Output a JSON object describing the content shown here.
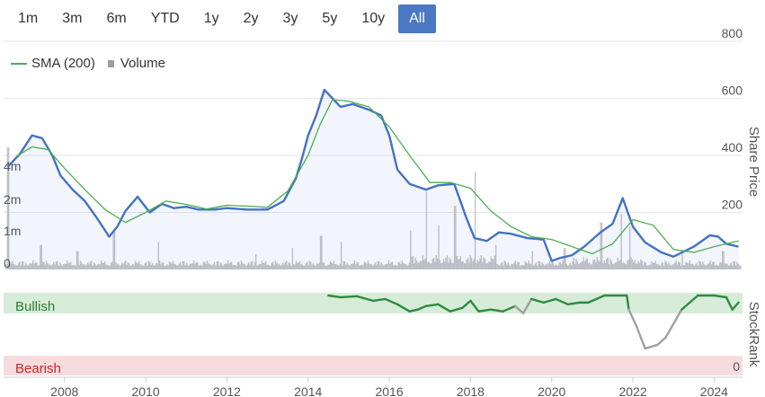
{
  "range_buttons": [
    {
      "label": "1m",
      "active": false
    },
    {
      "label": "3m",
      "active": false
    },
    {
      "label": "6m",
      "active": false
    },
    {
      "label": "YTD",
      "active": false
    },
    {
      "label": "1y",
      "active": false
    },
    {
      "label": "2y",
      "active": false
    },
    {
      "label": "3y",
      "active": false
    },
    {
      "label": "5y",
      "active": false
    },
    {
      "label": "10y",
      "active": false
    },
    {
      "label": "All",
      "active": true
    }
  ],
  "legend": {
    "sma_label": "SMA (200)",
    "volume_label": "Volume"
  },
  "colors": {
    "price": "#4472c4",
    "sma": "#4caf50",
    "volume": "#c4c4c4",
    "bullish_band": "#d6ecd9",
    "bearish_band": "#f7dcdf",
    "rank_bullish": "#2e8b3e",
    "rank_neutral": "#a0a0a0"
  },
  "chart_data": {
    "type": "line",
    "x_ticks": [
      "2008",
      "2010",
      "2012",
      "2014",
      "2016",
      "2018",
      "2020",
      "2022",
      "2024"
    ],
    "price_axis": {
      "label": "Share Price",
      "ticks": [
        "800",
        "600",
        "400",
        "200"
      ],
      "ylim": [
        0,
        800
      ]
    },
    "volume_axis": {
      "ticks": [
        "4m",
        "2m",
        "1m",
        "0"
      ]
    },
    "stockrank_axis": {
      "label": "StockRank",
      "ticks": [
        "0"
      ],
      "bands": [
        "Bullish",
        "Bearish"
      ]
    },
    "price": {
      "x": [
        2006.6,
        2006.9,
        2007.2,
        2007.45,
        2007.7,
        2007.9,
        2008.2,
        2008.5,
        2008.8,
        2009.1,
        2009.3,
        2009.5,
        2009.8,
        2010.1,
        2010.4,
        2010.7,
        2011.0,
        2011.3,
        2011.7,
        2012.0,
        2012.5,
        2013.0,
        2013.4,
        2013.7,
        2013.85,
        2014.0,
        2014.2,
        2014.4,
        2014.6,
        2014.8,
        2015.1,
        2015.5,
        2015.8,
        2016.0,
        2016.2,
        2016.5,
        2016.9,
        2017.2,
        2017.6,
        2017.9,
        2018.1,
        2018.4,
        2018.7,
        2019.0,
        2019.4,
        2019.8,
        2020.0,
        2020.2,
        2020.5,
        2020.8,
        2021.2,
        2021.5,
        2021.75,
        2022.0,
        2022.3,
        2022.7,
        2023.0,
        2023.5,
        2023.9,
        2024.1,
        2024.3,
        2024.6
      ],
      "y": [
        360,
        405,
        470,
        460,
        400,
        330,
        280,
        240,
        180,
        115,
        150,
        205,
        255,
        200,
        230,
        215,
        220,
        210,
        210,
        215,
        210,
        210,
        240,
        320,
        390,
        470,
        540,
        630,
        600,
        570,
        580,
        560,
        540,
        470,
        350,
        300,
        280,
        295,
        300,
        180,
        110,
        100,
        130,
        125,
        110,
        105,
        30,
        40,
        50,
        80,
        130,
        160,
        250,
        150,
        95,
        60,
        45,
        80,
        120,
        115,
        90,
        80
      ]
    },
    "sma": {
      "x": [
        2006.8,
        2007.2,
        2007.6,
        2008.0,
        2008.5,
        2009.0,
        2009.5,
        2010.0,
        2010.5,
        2011.0,
        2011.5,
        2012.0,
        2012.5,
        2013.0,
        2013.5,
        2014.0,
        2014.3,
        2014.6,
        2015.0,
        2015.5,
        2016.0,
        2016.5,
        2017.0,
        2017.5,
        2018.0,
        2018.5,
        2019.0,
        2019.5,
        2020.0,
        2020.5,
        2021.0,
        2021.5,
        2022.0,
        2022.5,
        2023.0,
        2023.5,
        2024.0,
        2024.6
      ],
      "y": [
        395,
        430,
        420,
        355,
        280,
        210,
        165,
        200,
        240,
        228,
        212,
        225,
        222,
        218,
        275,
        400,
        510,
        595,
        590,
        570,
        500,
        400,
        305,
        305,
        285,
        205,
        150,
        115,
        105,
        80,
        55,
        90,
        175,
        155,
        70,
        60,
        80,
        100
      ]
    },
    "volume_peaks": [
      {
        "x": 2006.6,
        "v": 4.0
      },
      {
        "x": 2007.4,
        "v": 0.8
      },
      {
        "x": 2008.3,
        "v": 0.6
      },
      {
        "x": 2009.2,
        "v": 1.3
      },
      {
        "x": 2010.3,
        "v": 0.9
      },
      {
        "x": 2012.7,
        "v": 0.5
      },
      {
        "x": 2013.6,
        "v": 0.7
      },
      {
        "x": 2014.3,
        "v": 1.1
      },
      {
        "x": 2014.8,
        "v": 0.9
      },
      {
        "x": 2016.5,
        "v": 0.8
      },
      {
        "x": 2016.9,
        "v": 1.6
      },
      {
        "x": 2017.2,
        "v": 0.9
      },
      {
        "x": 2017.6,
        "v": 1.3
      },
      {
        "x": 2018.1,
        "v": 2.0
      },
      {
        "x": 2018.6,
        "v": 0.8
      },
      {
        "x": 2019.5,
        "v": 0.6
      },
      {
        "x": 2020.3,
        "v": 0.7
      },
      {
        "x": 2021.2,
        "v": 1.1
      },
      {
        "x": 2021.7,
        "v": 1.3
      },
      {
        "x": 2021.9,
        "v": 1.0
      },
      {
        "x": 2023.2,
        "v": 0.5
      },
      {
        "x": 2024.2,
        "v": 0.6
      }
    ],
    "stockrank": {
      "x": [
        2014.5,
        2014.8,
        2015.2,
        2015.6,
        2015.9,
        2016.2,
        2016.5,
        2016.7,
        2016.9,
        2017.2,
        2017.5,
        2017.8,
        2018.0,
        2018.2,
        2018.5,
        2018.8,
        2019.1,
        2019.3,
        2019.5,
        2019.8,
        2020.1,
        2020.4,
        2020.7,
        2020.9,
        2021.3,
        2021.85,
        2021.9,
        2022.1,
        2022.3,
        2022.6,
        2022.8,
        2023.2,
        2023.6,
        2024.0,
        2024.3,
        2024.45,
        2024.6
      ],
      "y": [
        1.0,
        0.95,
        0.98,
        0.85,
        0.9,
        0.75,
        0.55,
        0.6,
        0.7,
        0.75,
        0.55,
        0.65,
        0.85,
        0.55,
        0.6,
        0.55,
        0.7,
        0.5,
        0.9,
        0.8,
        0.9,
        0.75,
        0.8,
        0.8,
        1.0,
        1.0,
        0.6,
        0.1,
        -0.5,
        -0.4,
        -0.2,
        0.6,
        1.0,
        1.0,
        0.95,
        0.6,
        0.8
      ],
      "bullish_from": 0.55
    }
  }
}
